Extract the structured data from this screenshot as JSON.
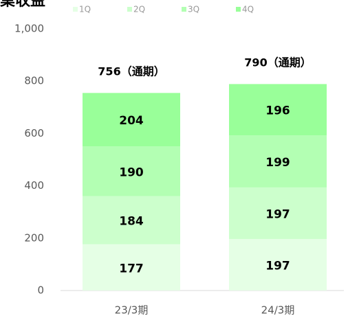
{
  "chart_data": {
    "type": "stacked_bar",
    "title": "業収益",
    "categories": [
      "23/3期",
      "24/3期"
    ],
    "series": [
      {
        "name": "1Q",
        "color": "#e5ffe5",
        "values": [
          177,
          197
        ]
      },
      {
        "name": "2Q",
        "color": "#ccffcc",
        "values": [
          184,
          197
        ]
      },
      {
        "name": "3Q",
        "color": "#b3ffb3",
        "values": [
          190,
          199
        ]
      },
      {
        "name": "4Q",
        "color": "#99ff99",
        "values": [
          204,
          196
        ]
      }
    ],
    "totals": {
      "values": [
        756,
        790
      ],
      "value_labels": [
        "756（通期）",
        "790（通期）"
      ]
    },
    "ylim": [
      0,
      1000
    ],
    "yticks": [
      0,
      200,
      400,
      600,
      800,
      {
        "value": 1000,
        "label": "1,000"
      }
    ],
    "grid": false
  }
}
